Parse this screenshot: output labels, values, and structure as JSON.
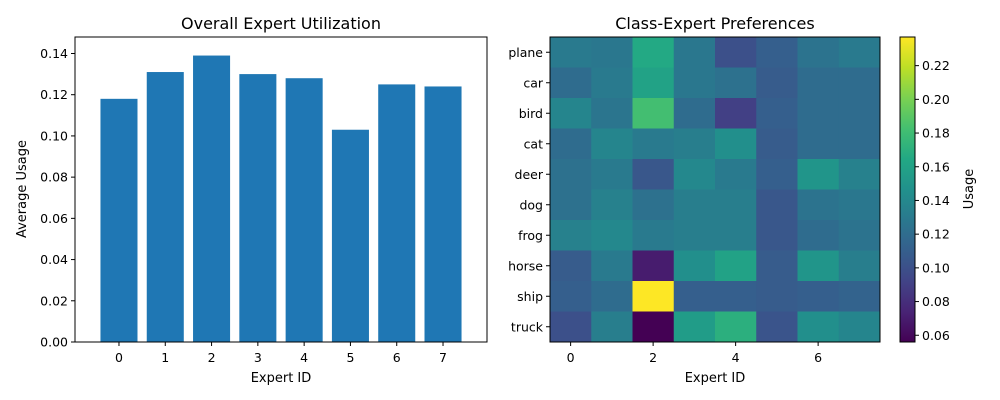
{
  "chart_data": [
    {
      "type": "bar",
      "title": "Overall Expert Utilization",
      "xlabel": "Expert ID",
      "ylabel": "Average Usage",
      "categories": [
        "0",
        "1",
        "2",
        "3",
        "4",
        "5",
        "6",
        "7"
      ],
      "values": [
        0.118,
        0.131,
        0.139,
        0.13,
        0.128,
        0.103,
        0.125,
        0.124
      ],
      "ylim": [
        0,
        0.148
      ],
      "yticks": [
        0.0,
        0.02,
        0.04,
        0.06,
        0.08,
        0.1,
        0.12,
        0.14
      ],
      "ytick_labels": [
        "0.00",
        "0.02",
        "0.04",
        "0.06",
        "0.08",
        "0.10",
        "0.12",
        "0.14"
      ],
      "color": "#1f77b4",
      "grid": false
    },
    {
      "type": "heatmap",
      "title": "Class-Expert Preferences",
      "xlabel": "Expert ID",
      "ylabel": "",
      "colorbar_label": "Usage",
      "colormap": "viridis",
      "vmin": 0.056,
      "vmax": 0.237,
      "rows": [
        "plane",
        "car",
        "bird",
        "cat",
        "deer",
        "dog",
        "frog",
        "horse",
        "ship",
        "truck"
      ],
      "columns": [
        0,
        1,
        2,
        3,
        4,
        5,
        6,
        7
      ],
      "xticks": [
        0,
        2,
        4,
        6
      ],
      "xtick_labels": [
        "0",
        "2",
        "4",
        "6"
      ],
      "colorbar_ticks": [
        0.06,
        0.08,
        0.1,
        0.12,
        0.14,
        0.16,
        0.18,
        0.2,
        0.22
      ],
      "colorbar_tick_labels": [
        "0.06",
        "0.08",
        "0.10",
        "0.12",
        "0.14",
        "0.16",
        "0.18",
        "0.20",
        "0.22"
      ],
      "values": [
        [
          0.13,
          0.128,
          0.165,
          0.128,
          0.1,
          0.11,
          0.125,
          0.13
        ],
        [
          0.12,
          0.13,
          0.16,
          0.128,
          0.123,
          0.108,
          0.12,
          0.12
        ],
        [
          0.138,
          0.126,
          0.182,
          0.12,
          0.09,
          0.11,
          0.12,
          0.12
        ],
        [
          0.12,
          0.138,
          0.13,
          0.133,
          0.145,
          0.108,
          0.12,
          0.12
        ],
        [
          0.123,
          0.13,
          0.105,
          0.14,
          0.13,
          0.11,
          0.15,
          0.135
        ],
        [
          0.123,
          0.135,
          0.123,
          0.133,
          0.133,
          0.105,
          0.125,
          0.128
        ],
        [
          0.135,
          0.14,
          0.13,
          0.133,
          0.133,
          0.105,
          0.12,
          0.125
        ],
        [
          0.108,
          0.13,
          0.07,
          0.145,
          0.16,
          0.108,
          0.15,
          0.133
        ],
        [
          0.11,
          0.12,
          0.237,
          0.11,
          0.11,
          0.108,
          0.11,
          0.113
        ],
        [
          0.1,
          0.133,
          0.056,
          0.155,
          0.17,
          0.103,
          0.145,
          0.138
        ]
      ]
    }
  ]
}
